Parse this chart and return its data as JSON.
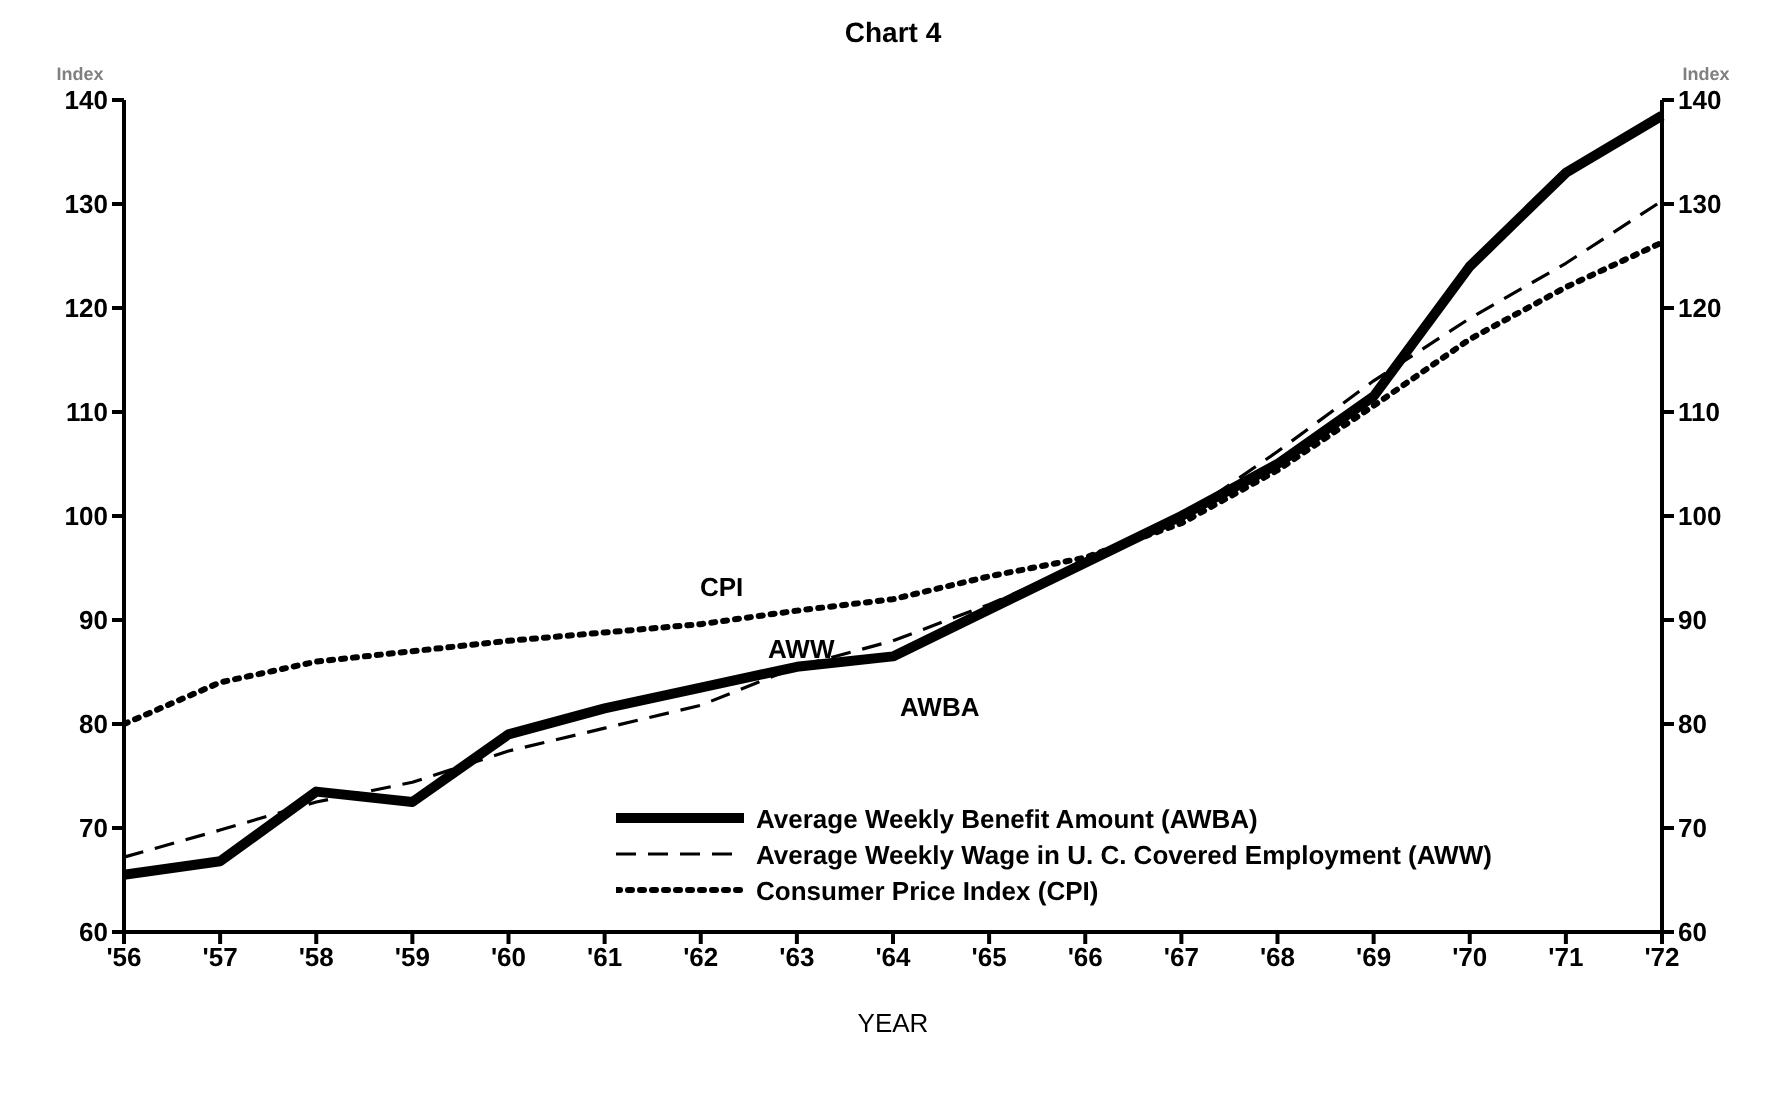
{
  "chart_data": {
    "type": "line",
    "title": "Chart 4",
    "xlabel": "YEAR",
    "ylabel": "Index",
    "y2label": "Index",
    "categories": [
      "'56",
      "'57",
      "'58",
      "'59",
      "'60",
      "'61",
      "'62",
      "'63",
      "'64",
      "'65",
      "'66",
      "'67",
      "'68",
      "'69",
      "'70",
      "'71",
      "'72"
    ],
    "series": [
      {
        "name": "Average Weekly Benefit Amount (AWBA)",
        "color": "#000000",
        "line_style": "solid",
        "values": [
          65.5,
          66.8,
          73.5,
          72.5,
          79,
          81.5,
          83.5,
          85.5,
          86.5,
          91,
          95.5,
          100,
          105,
          111.5,
          124,
          133,
          138.5
        ]
      },
      {
        "name": "Average Weekly Wage in U. C. Covered Employment (AWW)",
        "color": "#000000",
        "line_style": "dashed",
        "values": [
          67.2,
          69.8,
          72.5,
          74.4,
          77.4,
          79.6,
          81.8,
          85.5,
          88,
          91.5,
          95.5,
          99.8,
          106.2,
          113,
          119,
          124.3,
          130.3
        ]
      },
      {
        "name": "Consumer Price Index (CPI)",
        "color": "#000000",
        "line_style": "dotted",
        "values": [
          80,
          84,
          86,
          87,
          88,
          88.8,
          89.6,
          90.9,
          92,
          94.2,
          96,
          99.3,
          104.4,
          110.6,
          117,
          122,
          126.3
        ]
      }
    ],
    "ylim": [
      60,
      140
    ],
    "yticks": [
      60,
      70,
      80,
      90,
      100,
      110,
      120,
      130,
      140
    ],
    "y2lim": [
      60,
      140
    ],
    "y2ticks": [
      60,
      70,
      80,
      90,
      100,
      110,
      120,
      130,
      140
    ],
    "annotations": [
      "CPI",
      "AWW",
      "AWBA"
    ],
    "legend": "bottom right",
    "grid": false,
    "marker": "none"
  }
}
